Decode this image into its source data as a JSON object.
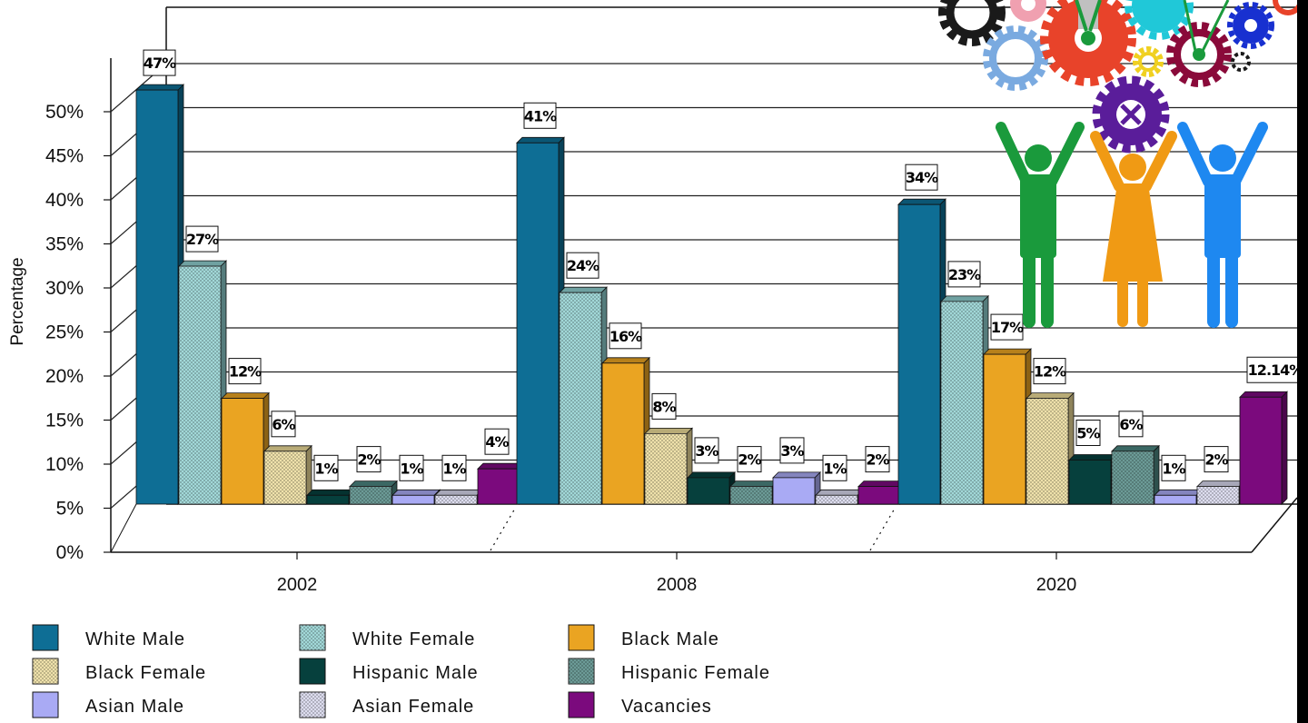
{
  "chart_data": {
    "type": "bar",
    "title": "",
    "xlabel": "",
    "ylabel": "Percentage",
    "ylim": [
      0,
      50
    ],
    "yticks": [
      "0%",
      "5%",
      "10%",
      "15%",
      "20%",
      "25%",
      "30%",
      "35%",
      "40%",
      "45%",
      "50%"
    ],
    "categories": [
      "2002",
      "2008",
      "2020"
    ],
    "grid": true,
    "legend_position": "bottom",
    "series": [
      {
        "name": "White Male",
        "color": "#0e6e95",
        "pattern": "solid",
        "values": [
          47,
          41,
          34
        ],
        "labels": [
          "47%",
          "41%",
          "34%"
        ]
      },
      {
        "name": "White Female",
        "color": "#8ecfcf",
        "pattern": "dots",
        "values": [
          27,
          24,
          23
        ],
        "labels": [
          "27%",
          "24%",
          "23%"
        ]
      },
      {
        "name": "Black Male",
        "color": "#eaa422",
        "pattern": "solid",
        "values": [
          12,
          16,
          17
        ],
        "labels": [
          "12%",
          "16%",
          "17%"
        ]
      },
      {
        "name": "Black Female",
        "color": "#ecdb98",
        "pattern": "dots",
        "values": [
          6,
          8,
          12
        ],
        "labels": [
          "6%",
          "8%",
          "12%"
        ]
      },
      {
        "name": "Hispanic Male",
        "color": "#06403d",
        "pattern": "solid",
        "values": [
          1,
          3,
          5
        ],
        "labels": [
          "1%",
          "3%",
          "5%"
        ]
      },
      {
        "name": "Hispanic Female",
        "color": "#4c8580",
        "pattern": "dots",
        "values": [
          2,
          2,
          6
        ],
        "labels": [
          "2%",
          "2%",
          "6%"
        ]
      },
      {
        "name": "Asian Male",
        "color": "#a9aaf4",
        "pattern": "solid",
        "values": [
          1,
          3,
          1
        ],
        "labels": [
          "1%",
          "3%",
          "1%"
        ]
      },
      {
        "name": "Asian Female",
        "color": "#d6d6ec",
        "pattern": "dots",
        "values": [
          1,
          1,
          2
        ],
        "labels": [
          "1%",
          "1%",
          "2%"
        ]
      },
      {
        "name": "Vacancies",
        "color": "#7b0a7d",
        "pattern": "solid",
        "values": [
          4,
          2,
          12.14
        ],
        "labels": [
          "4%",
          "2%",
          "12.14%"
        ]
      }
    ]
  },
  "decoration": {
    "illustration": "gears-and-people-icon",
    "colors": [
      "#1a9a3c",
      "#f09a14",
      "#1e88f0",
      "#e8432a",
      "#5a1d9a",
      "#8a0a3a",
      "#7aaae0",
      "#1a1a1a",
      "#f0d020",
      "#20c8d8",
      "#1830d0",
      "#f0a0b0"
    ]
  }
}
